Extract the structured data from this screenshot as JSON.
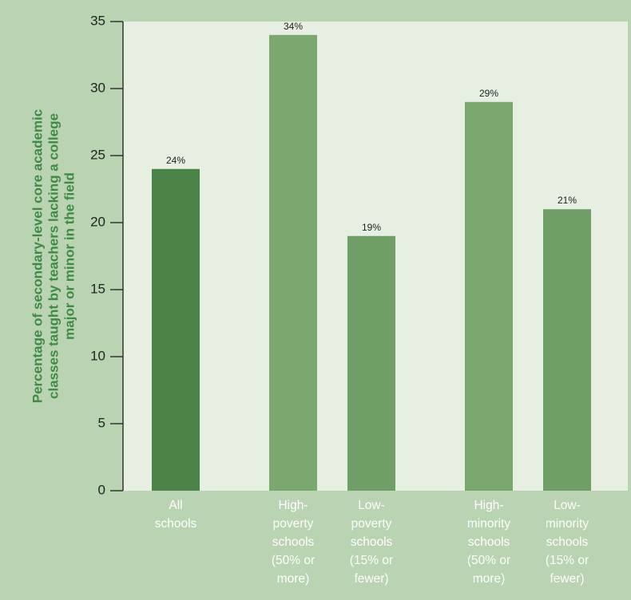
{
  "chart_data": {
    "type": "bar",
    "ylabel_lines": [
      "Percentage of secondary-level core academic",
      "classes taught by teachers lacking a college",
      "major or minor in the field"
    ],
    "ylim": [
      0,
      35
    ],
    "yticks": [
      0,
      5,
      10,
      15,
      20,
      25,
      30,
      35
    ],
    "grid": false,
    "categories": [
      "All schools",
      "High-poverty schools (50% or more)",
      "Low-poverty schools (15% or fewer)",
      "High-minority schools (50% or more)",
      "Low-minority schools (15% or fewer)"
    ],
    "category_lines": [
      [
        "All",
        "schools"
      ],
      [
        "High-",
        "poverty",
        "schools",
        "(50% or",
        "more)"
      ],
      [
        "Low-",
        "poverty",
        "schools",
        "(15% or",
        "fewer)"
      ],
      [
        "High-",
        "minority",
        "schools",
        "(50% or",
        "more)"
      ],
      [
        "Low-",
        "minority",
        "schools",
        "(15% or",
        "fewer)"
      ]
    ],
    "values": [
      24,
      34,
      19,
      29,
      21
    ],
    "value_labels": [
      "24%",
      "34%",
      "19%",
      "29%",
      "21%"
    ],
    "colors": [
      "#4a8449",
      "#7aa86f",
      "#6f9f66",
      "#7aa86f",
      "#6f9f66"
    ],
    "plot_background": "#e6efe1",
    "page_background": "#b9d3b3",
    "label_color": "#3f8a45"
  }
}
